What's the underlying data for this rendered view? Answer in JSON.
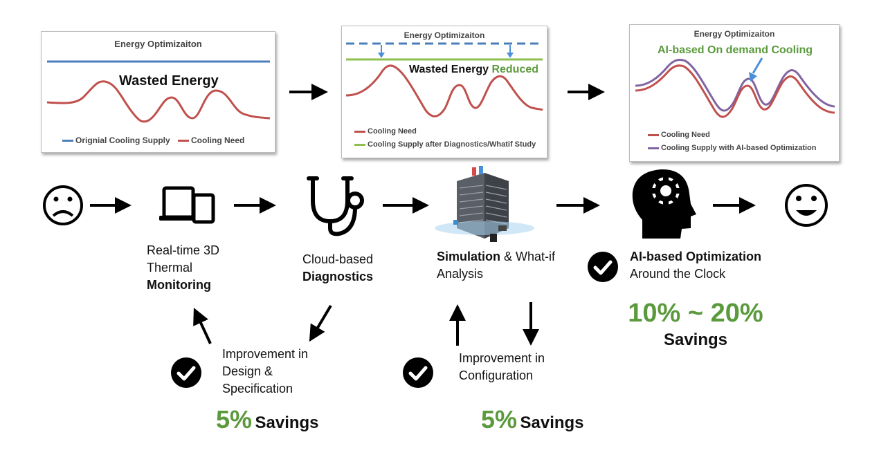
{
  "panels": [
    {
      "title": "Energy Optimizaiton",
      "annotation": "Wasted Energy",
      "legend": [
        "Orignial Cooling Supply",
        "Cooling Need"
      ]
    },
    {
      "title": "Energy Optimizaiton",
      "annotation_main": "Wasted Energy",
      "annotation_accent": "Reduced",
      "legend": [
        "Cooling Need",
        "Cooling Supply after Diagnostics/Whatif Study"
      ]
    },
    {
      "title": "Energy Optimizaiton",
      "annotation": "AI-based On demand Cooling",
      "legend": [
        "Cooling Need",
        "Cooling Supply with AI-based Optimization"
      ]
    }
  ],
  "steps": {
    "monitoring": {
      "line1": "Real-time 3D",
      "line2": "Thermal",
      "line3": "Monitoring"
    },
    "diagnostics": {
      "line1": "Cloud-based",
      "line2": "Diagnostics"
    },
    "simulation": {
      "bold": "Simulation",
      "rest": " & What-if",
      "line2": "Analysis"
    },
    "ai": {
      "line1": "AI-based Optimization",
      "line2": "Around the Clock"
    }
  },
  "improvements": {
    "design": {
      "line1": "Improvement in",
      "line2": "Design &",
      "line3": "Specification"
    },
    "config": {
      "line1": "Improvement in",
      "line2": "Configuration"
    }
  },
  "savings": {
    "design": {
      "pct": "5%",
      "label": "Savings"
    },
    "config": {
      "pct": "5%",
      "label": "Savings"
    },
    "ai": {
      "pct": "10% ~ 20%",
      "label": "Savings"
    }
  },
  "colors": {
    "red": "#c0504d",
    "blue": "#4a7ebb",
    "green": "#8dbf4e",
    "purple": "#8064a2",
    "accent_green": "#5a9a3c",
    "arrow_blue": "#4a90d9"
  },
  "icons": [
    "sad-face-icon",
    "devices-icon",
    "stethoscope-icon",
    "server-building-icon",
    "ai-head-gear-icon",
    "happy-face-icon",
    "check-icon"
  ]
}
